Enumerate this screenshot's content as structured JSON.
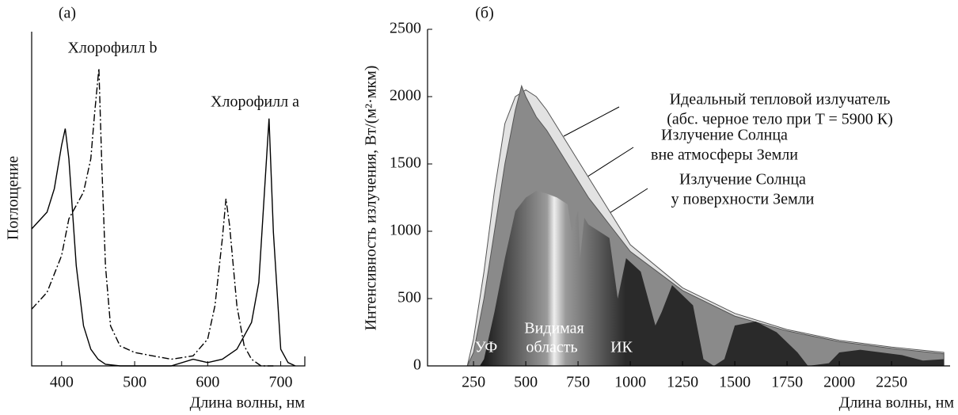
{
  "chart_data": [
    {
      "type": "line",
      "title": "(а)",
      "xlabel": "Длина волны, нм",
      "ylabel": "Поглощение",
      "xlim": [
        359,
        733
      ],
      "ylim": [
        0,
        1
      ],
      "xticks": [
        400,
        500,
        600,
        700
      ],
      "series": [
        {
          "name": "Хлорофилл a",
          "color": "#000000",
          "dashed": false,
          "x": [
            359,
            380,
            390,
            400,
            405,
            410,
            420,
            430,
            440,
            450,
            460,
            480,
            500,
            550,
            580,
            600,
            620,
            640,
            660,
            670,
            680,
            684,
            690,
            700,
            710,
            720
          ],
          "values": [
            0.41,
            0.46,
            0.53,
            0.66,
            0.71,
            0.62,
            0.3,
            0.12,
            0.05,
            0.02,
            0.005,
            0,
            0,
            0,
            0.02,
            0.01,
            0.02,
            0.05,
            0.13,
            0.25,
            0.6,
            0.74,
            0.4,
            0.05,
            0.01,
            0
          ]
        },
        {
          "name": "Хлорофилл b",
          "color": "#000000",
          "dashed": true,
          "x": [
            359,
            380,
            400,
            410,
            420,
            430,
            440,
            445,
            451,
            455,
            460,
            467,
            480,
            500,
            550,
            580,
            600,
            610,
            620,
            625,
            630,
            640,
            650,
            660,
            673,
            690
          ],
          "values": [
            0.17,
            0.22,
            0.33,
            0.44,
            0.48,
            0.52,
            0.62,
            0.75,
            0.89,
            0.6,
            0.3,
            0.12,
            0.06,
            0.04,
            0.02,
            0.03,
            0.08,
            0.18,
            0.38,
            0.5,
            0.42,
            0.18,
            0.06,
            0.02,
            0,
            0
          ]
        }
      ]
    },
    {
      "type": "area",
      "title": "(б)",
      "xlabel": "Длина волны, нм",
      "ylabel": "Интенсивность излучения, Вт/(м²·мкм)",
      "xlim": [
        30,
        2530
      ],
      "ylim": [
        0,
        2500
      ],
      "xticks": [
        250,
        500,
        750,
        1000,
        1250,
        1500,
        1750,
        2000,
        2250
      ],
      "yticks": [
        0,
        500,
        1000,
        1500,
        2000,
        2500
      ],
      "series": [
        {
          "name": [
            "Идеальный тепловой излучатель",
            "(абс. черное тело при T = 5900 К)"
          ],
          "color": "#e2e2e2",
          "x": [
            220,
            250,
            300,
            350,
            400,
            450,
            500,
            550,
            600,
            700,
            800,
            900,
            1000,
            1250,
            1500,
            1750,
            2000,
            2250,
            2500
          ],
          "values": [
            0,
            200,
            700,
            1300,
            1800,
            2000,
            2050,
            2000,
            1900,
            1650,
            1400,
            1150,
            900,
            580,
            390,
            270,
            190,
            140,
            100
          ]
        },
        {
          "name": [
            "Излучение Солнца",
            "вне атмосферы Земли"
          ],
          "color": "#8a8a8a",
          "x": [
            220,
            250,
            300,
            350,
            400,
            450,
            480,
            500,
            550,
            600,
            700,
            800,
            900,
            1000,
            1250,
            1500,
            1750,
            2000,
            2250,
            2500
          ],
          "values": [
            0,
            100,
            500,
            1000,
            1500,
            1900,
            2080,
            2000,
            1850,
            1750,
            1500,
            1250,
            1050,
            850,
            560,
            370,
            260,
            180,
            130,
            90
          ]
        },
        {
          "name": [
            "Излучение Солнца",
            "у поверхности Земли"
          ],
          "color": "#1a1a1a",
          "x": [
            280,
            300,
            350,
            400,
            450,
            500,
            550,
            600,
            650,
            700,
            720,
            750,
            760,
            780,
            800,
            900,
            940,
            980,
            1050,
            1120,
            1150,
            1200,
            1300,
            1350,
            1400,
            1450,
            1500,
            1600,
            1700,
            1800,
            1850,
            1950,
            2000,
            2100,
            2200,
            2300,
            2400,
            2500
          ],
          "values": [
            0,
            50,
            400,
            800,
            1150,
            1250,
            1300,
            1280,
            1250,
            1200,
            1000,
            1150,
            800,
            1100,
            1050,
            950,
            500,
            800,
            700,
            300,
            400,
            600,
            450,
            50,
            0,
            50,
            300,
            330,
            250,
            100,
            0,
            20,
            100,
            120,
            100,
            80,
            40,
            50
          ]
        }
      ],
      "annotations": [
        "УФ",
        "Видимая",
        "область",
        "ИК"
      ]
    }
  ]
}
